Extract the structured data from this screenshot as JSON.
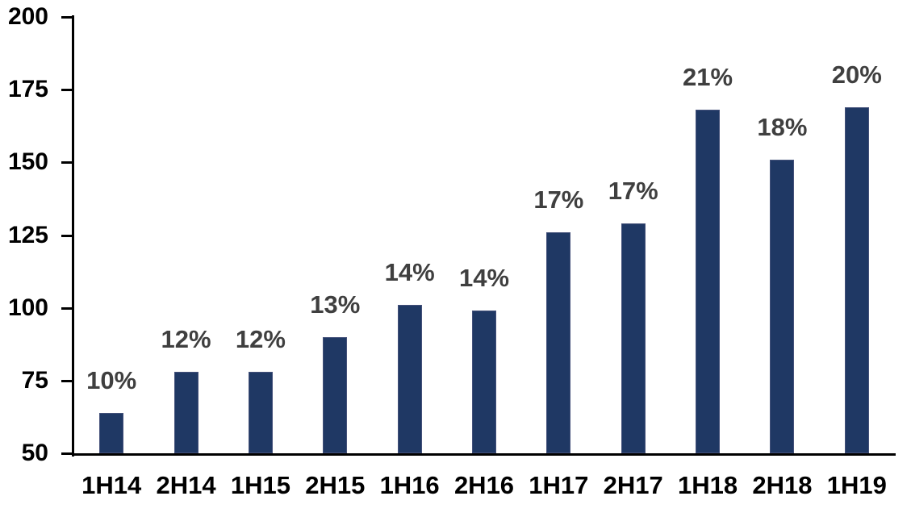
{
  "chart_data": {
    "type": "bar",
    "title": "",
    "xlabel": "",
    "ylabel": "",
    "categories": [
      "1H14",
      "2H14",
      "1H15",
      "2H15",
      "1H16",
      "2H16",
      "1H17",
      "2H17",
      "1H18",
      "2H18",
      "1H19"
    ],
    "values": [
      64,
      78,
      78,
      90,
      101,
      99,
      126,
      129,
      168,
      151,
      169
    ],
    "data_labels": [
      "10%",
      "12%",
      "12%",
      "13%",
      "14%",
      "14%",
      "17%",
      "17%",
      "21%",
      "18%",
      "20%"
    ],
    "ylim": [
      50,
      200
    ],
    "yticks": [
      50,
      75,
      100,
      125,
      150,
      175,
      200
    ],
    "grid": false,
    "legend": false,
    "colors": {
      "bar": "#1F3864",
      "bar_edge": "#44517A",
      "data_label": "#3F3F3F",
      "axis_text": "#000000",
      "axis_line": "#000000",
      "background": "#FFFFFF"
    }
  }
}
